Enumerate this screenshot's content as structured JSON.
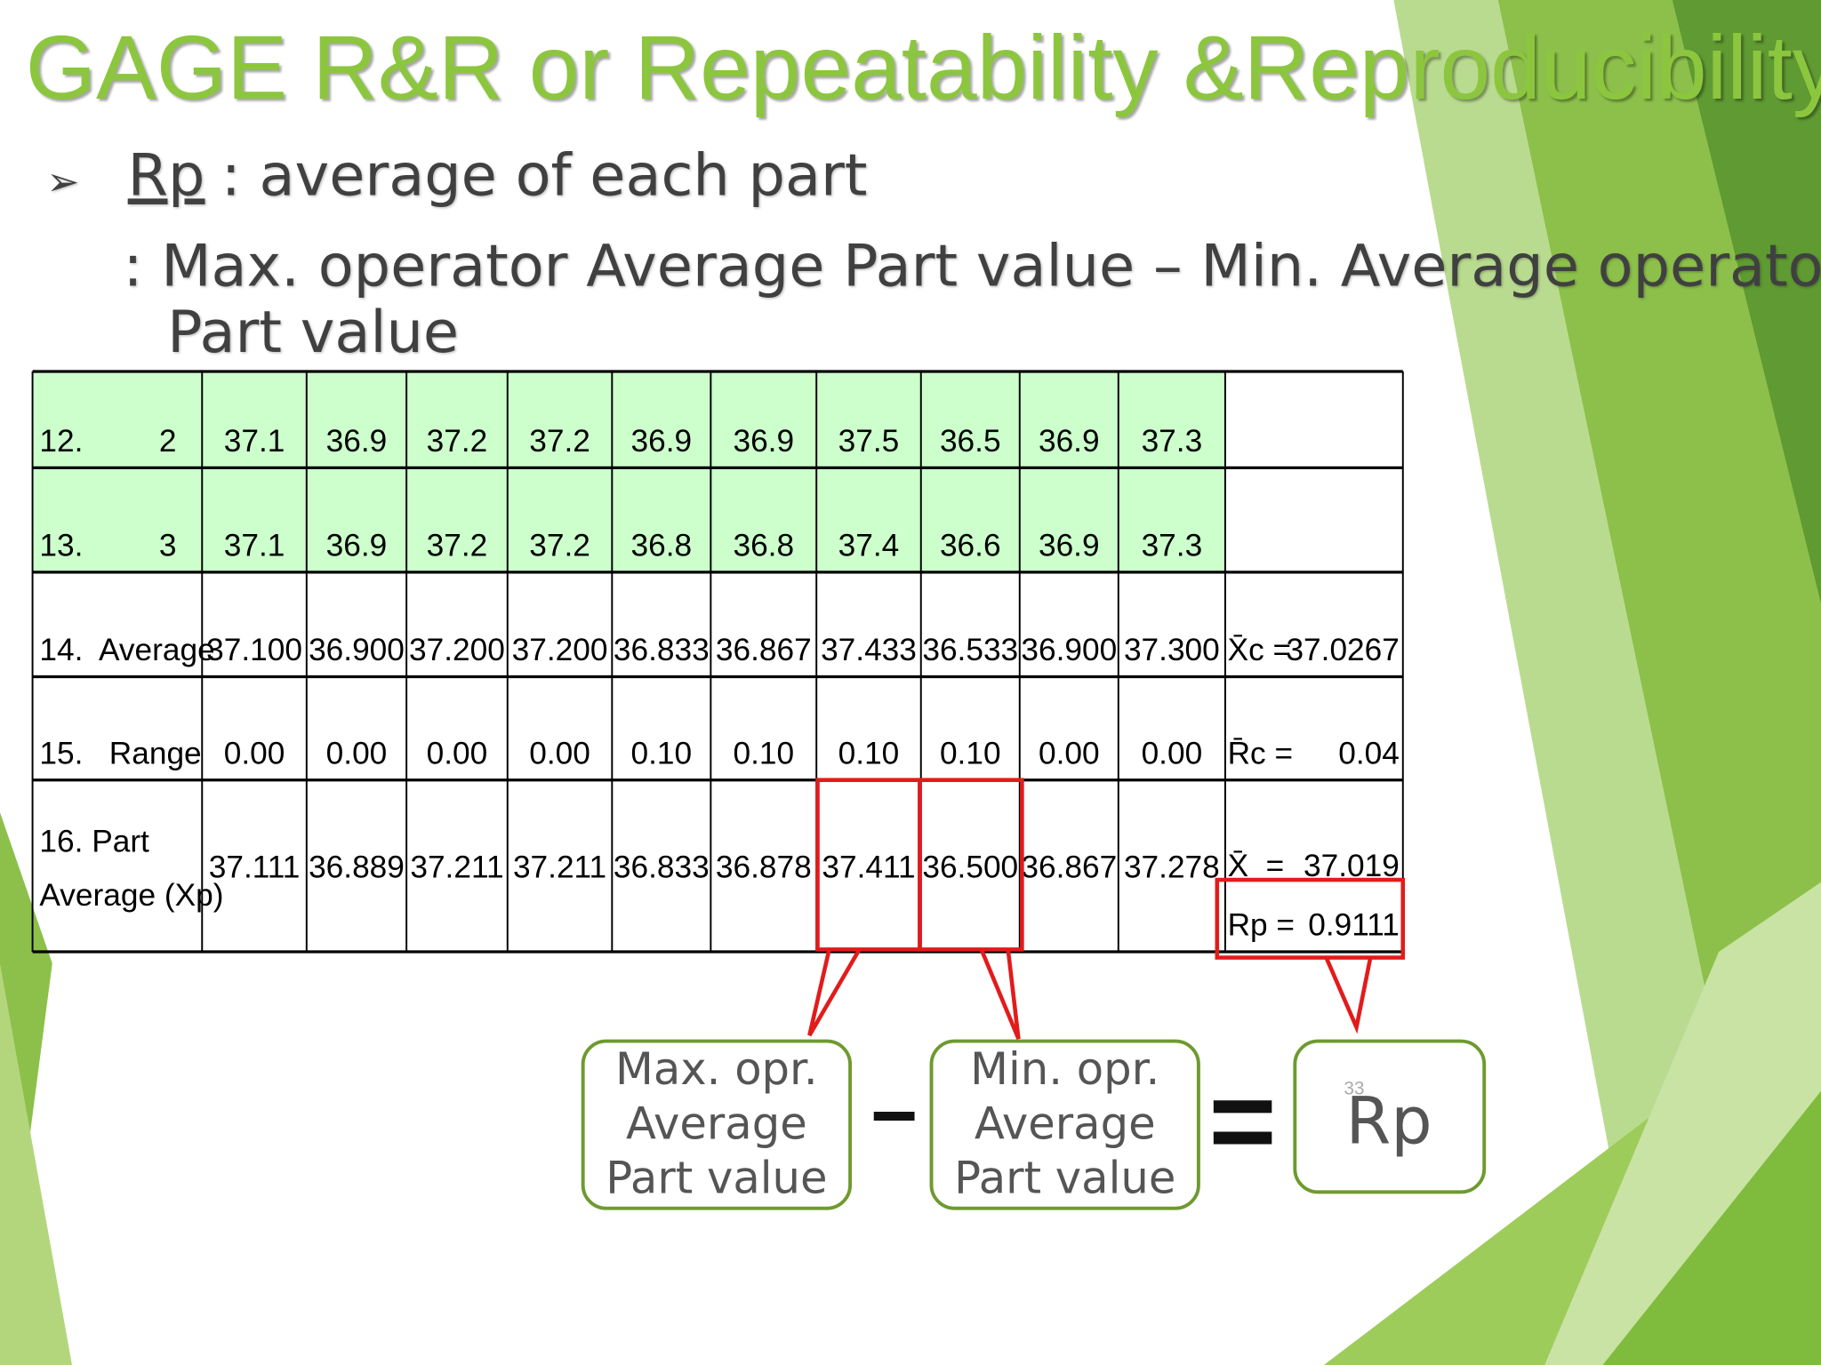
{
  "title": "GAGE R&R or Repeatability &Reproducibility",
  "bullet": {
    "term": "Rp",
    "text": ": average of each part"
  },
  "definition": [
    ": Max. operator Average Part value – Min. Average operator",
    "Part value"
  ],
  "table": {
    "rows": [
      {
        "label": [
          "12.",
          "2"
        ],
        "values": [
          "37.1",
          "36.9",
          "37.2",
          "37.2",
          "36.9",
          "36.9",
          "37.5",
          "36.5",
          "36.9",
          "37.3"
        ]
      },
      {
        "label": [
          "13.",
          "3"
        ],
        "values": [
          "37.1",
          "36.9",
          "37.2",
          "37.2",
          "36.8",
          "36.8",
          "37.4",
          "36.6",
          "36.9",
          "37.3"
        ]
      },
      {
        "label": [
          "14.  Average"
        ],
        "values": [
          "37.100",
          "36.900",
          "37.200",
          "37.200",
          "36.833",
          "36.867",
          "37.433",
          "36.533",
          "36.900",
          "37.300"
        ],
        "summary": [
          "X̄c =",
          "37.0267"
        ]
      },
      {
        "label": [
          "15.   Range"
        ],
        "values": [
          "0.00",
          "0.00",
          "0.00",
          "0.00",
          "0.10",
          "0.10",
          "0.10",
          "0.10",
          "0.00",
          "0.00"
        ],
        "summary": [
          "R̄c =",
          "0.04"
        ]
      },
      {
        "label": [
          "16. Part",
          "Average (Xp)"
        ],
        "values": [
          "37.111",
          "36.889",
          "37.211",
          "37.211",
          "36.833",
          "36.878",
          "37.411",
          "36.500",
          "36.867",
          "37.278"
        ],
        "summary": [
          "X̄  =",
          "37.019",
          "Rp =",
          "0.9111"
        ]
      }
    ]
  },
  "callouts": [
    [
      "Max. opr.",
      "Average",
      "Part value"
    ],
    [
      "Min. opr.",
      "Average",
      "Part value"
    ]
  ],
  "operators": [
    "−",
    "="
  ],
  "result": "Rp",
  "page_number": "33"
}
